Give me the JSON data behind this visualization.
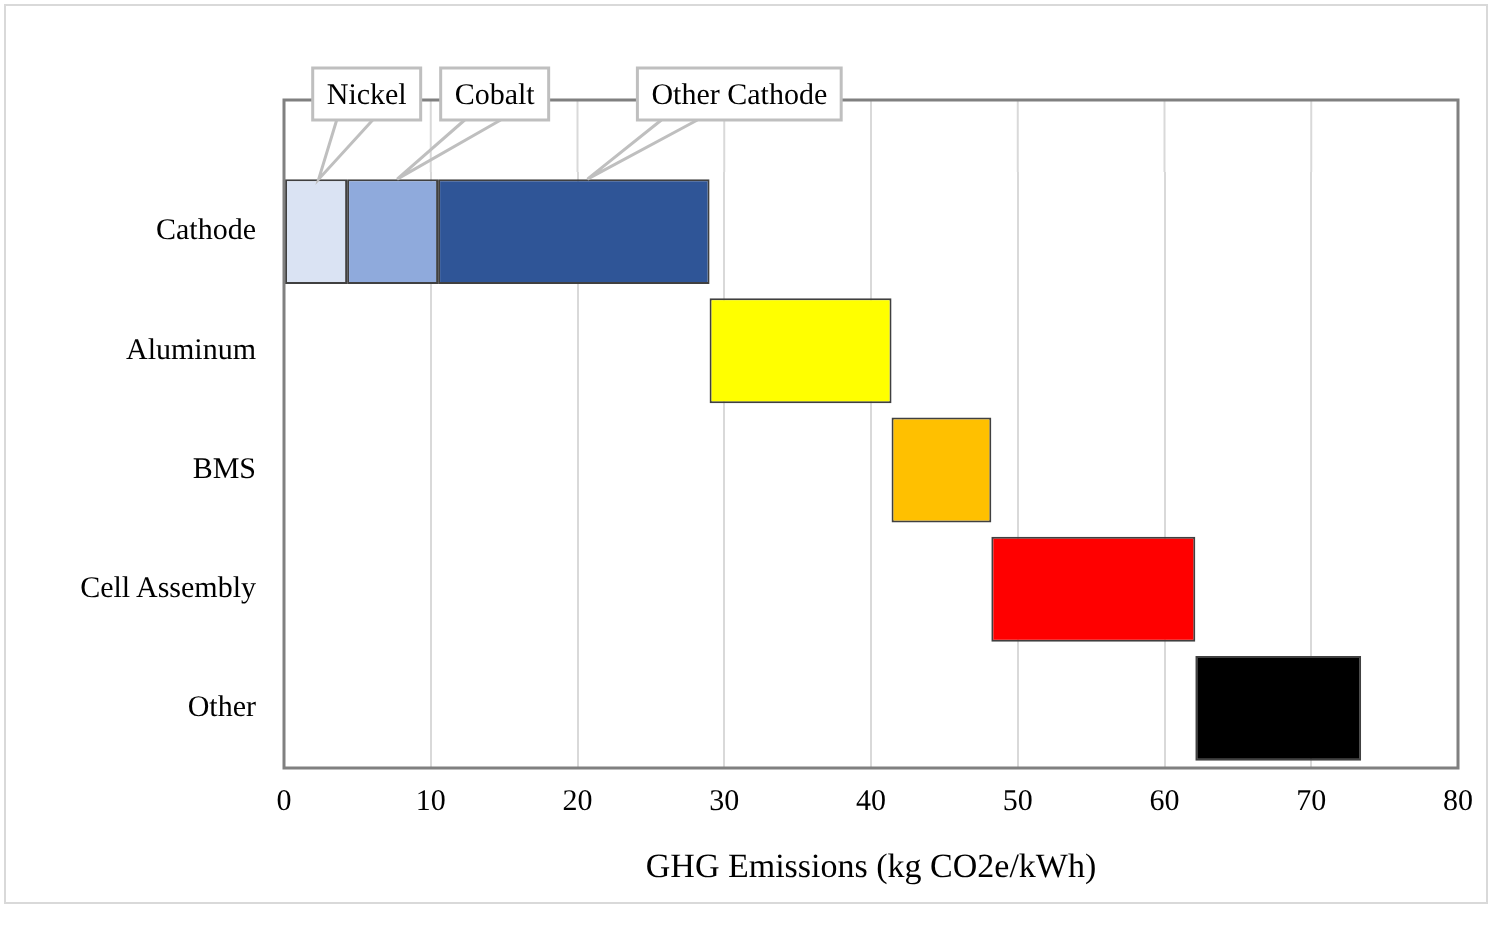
{
  "chart_data": {
    "type": "bar",
    "orientation": "horizontal",
    "xlabel": "GHG Emissions (kg CO2e/kWh)",
    "categories": [
      "Cathode",
      "Aluminum",
      "BMS",
      "Cell Assembly",
      "Other"
    ],
    "series": [
      {
        "name": "Nickel",
        "color": "#dae3f3",
        "values": [
          4.3,
          null,
          null,
          null,
          null
        ],
        "base": [
          0,
          null,
          null,
          null,
          null
        ]
      },
      {
        "name": "Cobalt",
        "color": "#8faadc",
        "values": [
          6.2,
          null,
          null,
          null,
          null
        ],
        "base": [
          4.3,
          null,
          null,
          null,
          null
        ]
      },
      {
        "name": "Other Cathode",
        "color": "#2f5597",
        "values": [
          18.5,
          null,
          null,
          null,
          null
        ],
        "base": [
          10.5,
          null,
          null,
          null,
          null
        ]
      },
      {
        "colors": [
          null,
          "#ffff00",
          "#ffc000",
          "#ff0000",
          "#000000"
        ],
        "values": [
          null,
          12.4,
          6.8,
          13.9,
          11.3
        ],
        "base": [
          null,
          29.0,
          41.4,
          48.2,
          62.1
        ]
      }
    ],
    "xlim": [
      0,
      80
    ],
    "xticks": [
      0,
      10,
      20,
      30,
      40,
      50,
      60,
      70,
      80
    ],
    "grid": "x"
  }
}
